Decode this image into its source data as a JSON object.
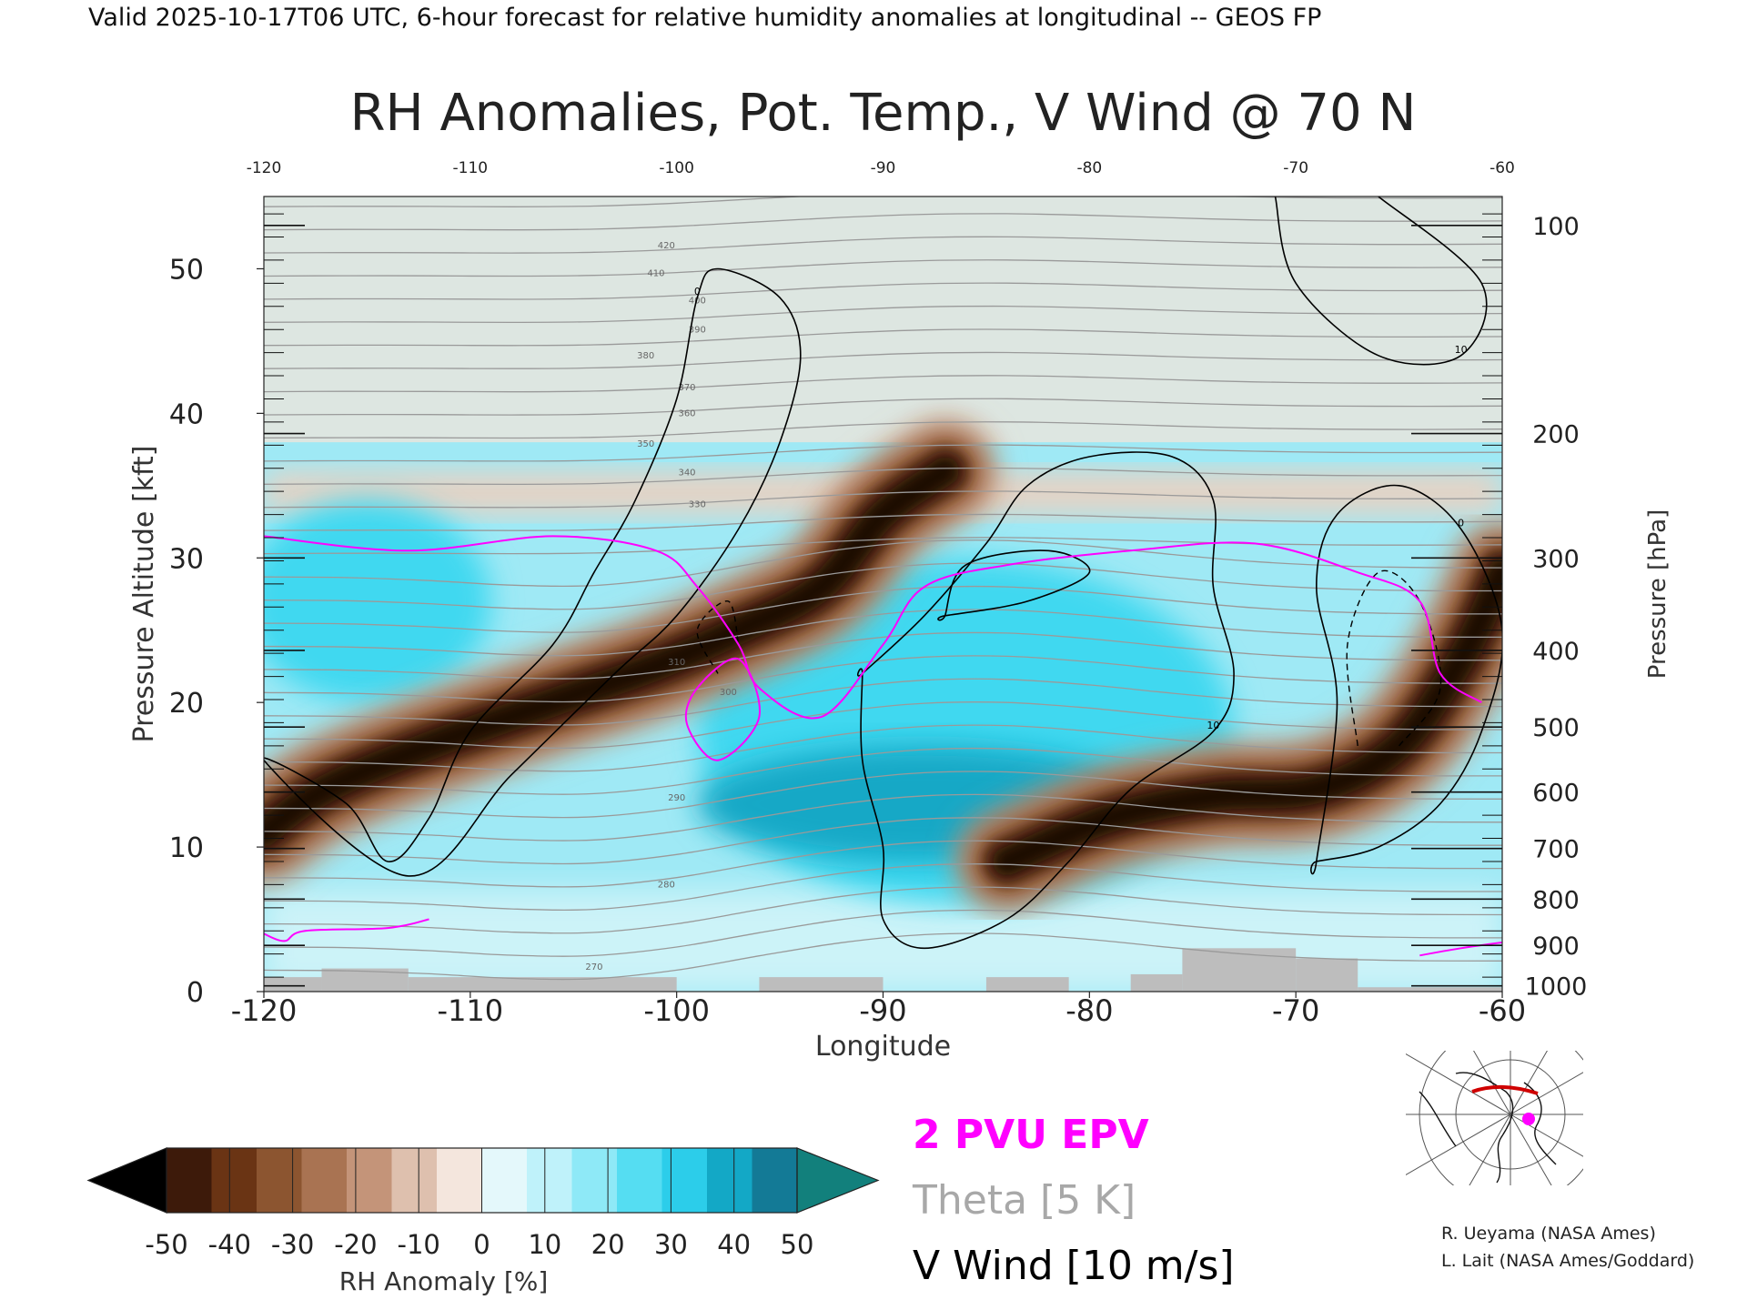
{
  "header": {
    "valid_line": "Valid 2025-10-17T06 UTC, 6-hour forecast for relative humidity anomalies at longitudinal -- GEOS FP"
  },
  "chart_data": {
    "type": "heatmap",
    "title": "RH Anomalies, Pot. Temp., V Wind @ 70 N",
    "xlabel": "Longitude",
    "ylabel_left": "Pressure Altitude [kft]",
    "ylabel_right": "Pressure [hPa]",
    "xlim": [
      -120,
      -60
    ],
    "ylim": [
      0,
      55
    ],
    "x_ticks": [
      "-120",
      "-110",
      "-100",
      "-90",
      "-80",
      "-70",
      "-60"
    ],
    "x_tick_values": [
      -120,
      -110,
      -100,
      -90,
      -80,
      -70,
      -60
    ],
    "y_ticks": [
      "0",
      "10",
      "20",
      "30",
      "40",
      "50"
    ],
    "y_tick_values": [
      0,
      10,
      20,
      30,
      40,
      50
    ],
    "pressure_ticks": [
      {
        "label": "100",
        "kft": 53
      },
      {
        "label": "200",
        "kft": 38.6
      },
      {
        "label": "300",
        "kft": 30
      },
      {
        "label": "400",
        "kft": 23.6
      },
      {
        "label": "500",
        "kft": 18.3
      },
      {
        "label": "600",
        "kft": 13.8
      },
      {
        "label": "700",
        "kft": 9.9
      },
      {
        "label": "800",
        "kft": 6.4
      },
      {
        "label": "900",
        "kft": 3.2
      },
      {
        "label": "1000",
        "kft": 0.4
      }
    ],
    "features": {
      "dry_bands": [
        {
          "name": "western dry band",
          "path": [
            [
              -120,
              11
            ],
            [
              -117,
              14
            ],
            [
              -112,
              17
            ],
            [
              -106,
              20
            ],
            [
              -101,
              22.5
            ],
            [
              -97,
              25
            ],
            [
              -93,
              28
            ],
            [
              -90,
              33
            ],
            [
              -87,
              36
            ]
          ],
          "width_kft": 7
        },
        {
          "name": "eastern dry band",
          "path": [
            [
              -84,
              9
            ],
            [
              -79,
              12
            ],
            [
              -74,
              13.5
            ],
            [
              -69,
              14
            ],
            [
              -65,
              17
            ],
            [
              -62,
              23
            ],
            [
              -60,
              29
            ]
          ],
          "width_kft": 7
        }
      ],
      "moist_regions": [
        {
          "name": "central moist region",
          "center": [
            -86,
            18
          ],
          "radius": [
            13,
            12
          ]
        },
        {
          "name": "western moist region",
          "center": [
            -115,
            27
          ],
          "radius": [
            6,
            7
          ]
        }
      ],
      "vwind_contours": [
        {
          "label": "0",
          "points": [
            [
              -120,
              16
            ],
            [
              -116,
              13
            ],
            [
              -114,
              9
            ],
            [
              -112,
              12
            ],
            [
              -110,
              18
            ],
            [
              -106,
              24
            ],
            [
              -104,
              29
            ],
            [
              -102,
              34
            ],
            [
              -100,
              41
            ],
            [
              -99,
              48
            ],
            [
              -98,
              50
            ],
            [
              -95,
              48
            ],
            [
              -94,
              44
            ],
            [
              -95,
              38
            ],
            [
              -97,
              32
            ],
            [
              -100,
              26
            ],
            [
              -103,
              22
            ],
            [
              -108,
              15
            ],
            [
              -113,
              8
            ]
          ]
        },
        {
          "label": "10",
          "points": [
            [
              -91,
              22
            ],
            [
              -88,
              26
            ],
            [
              -85,
              31
            ],
            [
              -83,
              35
            ],
            [
              -80,
              37
            ],
            [
              -76,
              37
            ],
            [
              -74,
              34
            ],
            [
              -74,
              28
            ],
            [
              -73,
              22
            ],
            [
              -74,
              18
            ],
            [
              -78,
              14
            ],
            [
              -81,
              9
            ],
            [
              -84,
              5
            ],
            [
              -88,
              3
            ],
            [
              -90,
              5
            ],
            [
              -90,
              10
            ],
            [
              -91,
              16
            ],
            [
              -91,
              22
            ]
          ]
        },
        {
          "label": "0",
          "points": [
            [
              -69,
              9
            ],
            [
              -68,
              20
            ],
            [
              -69,
              28
            ],
            [
              -68,
              33
            ],
            [
              -65,
              35
            ],
            [
              -62,
              32
            ],
            [
              -60,
              25
            ],
            [
              -61,
              18
            ],
            [
              -63,
              13
            ],
            [
              -66,
              10
            ],
            [
              -69,
              9
            ]
          ]
        },
        {
          "label": "10",
          "points": [
            [
              -71,
              55
            ],
            [
              -70,
              49
            ],
            [
              -66,
              44
            ],
            [
              -62,
              44
            ],
            [
              -61,
              49
            ],
            [
              -66,
              55
            ]
          ]
        }
      ],
      "epv_2pvu_path": [
        [
          -120,
          31.5
        ],
        [
          -113,
          30.5
        ],
        [
          -106,
          31.5
        ],
        [
          -101,
          30.5
        ],
        [
          -99,
          28
        ],
        [
          -97,
          24
        ],
        [
          -96,
          21
        ],
        [
          -93,
          19
        ],
        [
          -90,
          24
        ],
        [
          -88,
          28
        ],
        [
          -84,
          29.5
        ],
        [
          -78,
          30.5
        ],
        [
          -72,
          31
        ],
        [
          -67,
          29
        ],
        [
          -64,
          27
        ],
        [
          -63,
          22
        ],
        [
          -61,
          20
        ]
      ],
      "theta_levels": [
        "270",
        "280",
        "290",
        "300",
        "310",
        "320",
        "330",
        "340",
        "350",
        "360",
        "370",
        "380",
        "390",
        "400",
        "410",
        "420"
      ]
    },
    "colorbar": {
      "ticks": [
        "-50",
        "-40",
        "-30",
        "-20",
        "-10",
        "0",
        "10",
        "20",
        "30",
        "40",
        "50"
      ],
      "label": "RH Anomaly [%]",
      "colors": [
        "#000000",
        "#3d1a0a",
        "#6a3414",
        "#8c5530",
        "#a97352",
        "#c49479",
        "#dec0ae",
        "#f4e6dd",
        "#e4f8fb",
        "#bff2fa",
        "#8ee9f7",
        "#55ddf2",
        "#2ccdea",
        "#13a8c6",
        "#137a96",
        "#12807c"
      ]
    }
  },
  "legend": {
    "epv_label": "2 PVU EPV",
    "theta_label": "Theta [5 K]",
    "vwind_label": "V Wind [10 m/s]",
    "colors": {
      "epv": "#ff00ff",
      "theta": "#a8a8a8",
      "vwind": "#000000"
    }
  },
  "credits": {
    "line1": "R. Ueyama (NASA Ames)",
    "line2": "L. Lait (NASA Ames/Goddard)"
  },
  "inset_map": {
    "marker_color": "#ff00ff",
    "track_color": "#d00000"
  }
}
